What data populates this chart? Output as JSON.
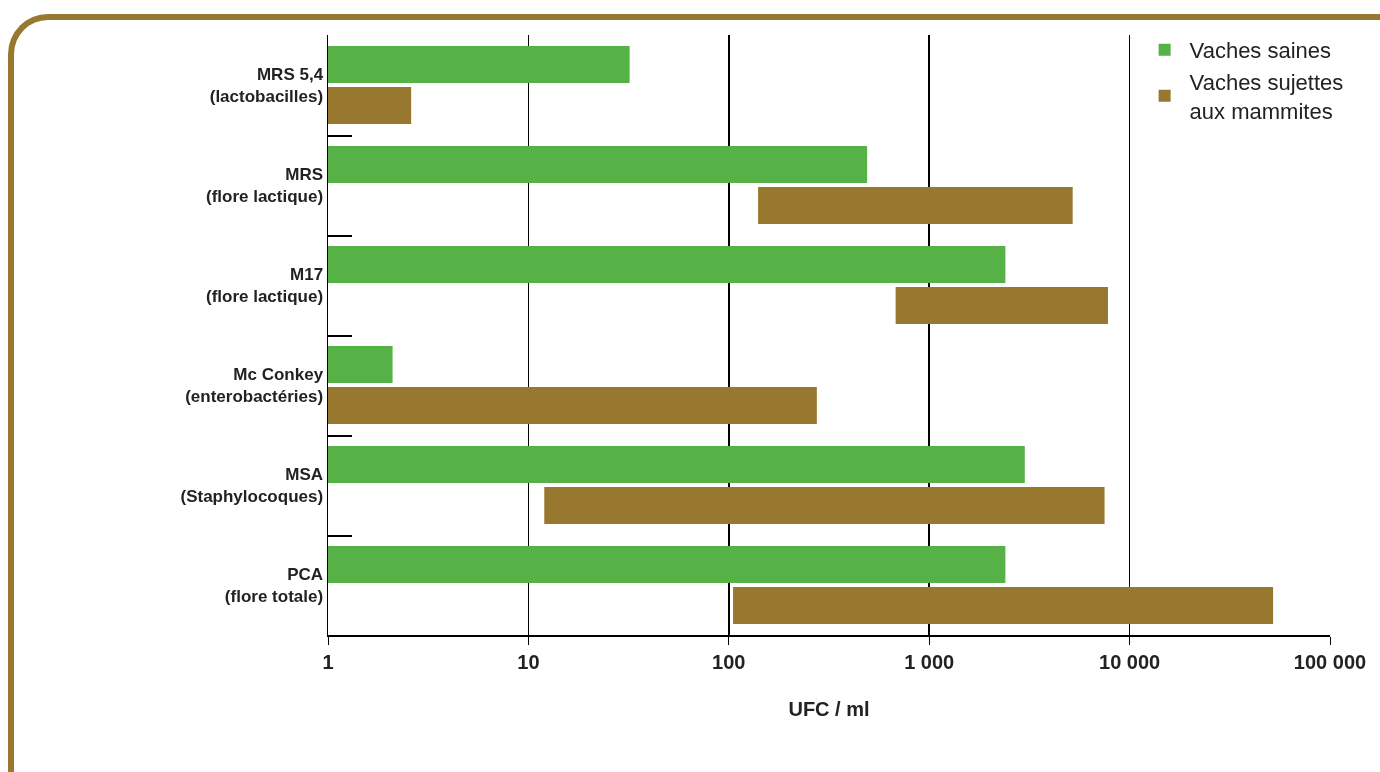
{
  "chart_data": {
    "type": "bar",
    "orientation": "horizontal",
    "log": "x",
    "xlabel": "UFC / ml",
    "categories": [
      "MRS 5,4\n(lactobacilles)",
      "MRS\n(flore lactique)",
      "M17\n(flore lactique)",
      "Mc Conkey\n(enterobactéries)",
      "MSA\n(Staphylocoques)",
      "PCA\n(flore totale)"
    ],
    "series": [
      {
        "name": "Vaches saines",
        "color": "#56b247",
        "base": [
          1,
          1,
          1,
          1,
          1,
          1
        ],
        "values": [
          31,
          489,
          2399,
          1.1,
          2999,
          2399
        ]
      },
      {
        "name": "Vaches sujettes\naux mammites",
        "color": "#98782e",
        "base": [
          1,
          140,
          680,
          1,
          12,
          105
        ],
        "values": [
          1.6,
          5060,
          7120,
          274,
          7488,
          51895
        ]
      }
    ],
    "xlim": [
      1,
      100000
    ],
    "xticks": [
      1,
      10,
      100,
      {
        "value": 1000,
        "label": "1 000"
      },
      {
        "value": 10000,
        "label": "10 000"
      },
      {
        "value": 100000,
        "label": "100 000"
      }
    ],
    "grid": "x",
    "legend": "top right"
  }
}
